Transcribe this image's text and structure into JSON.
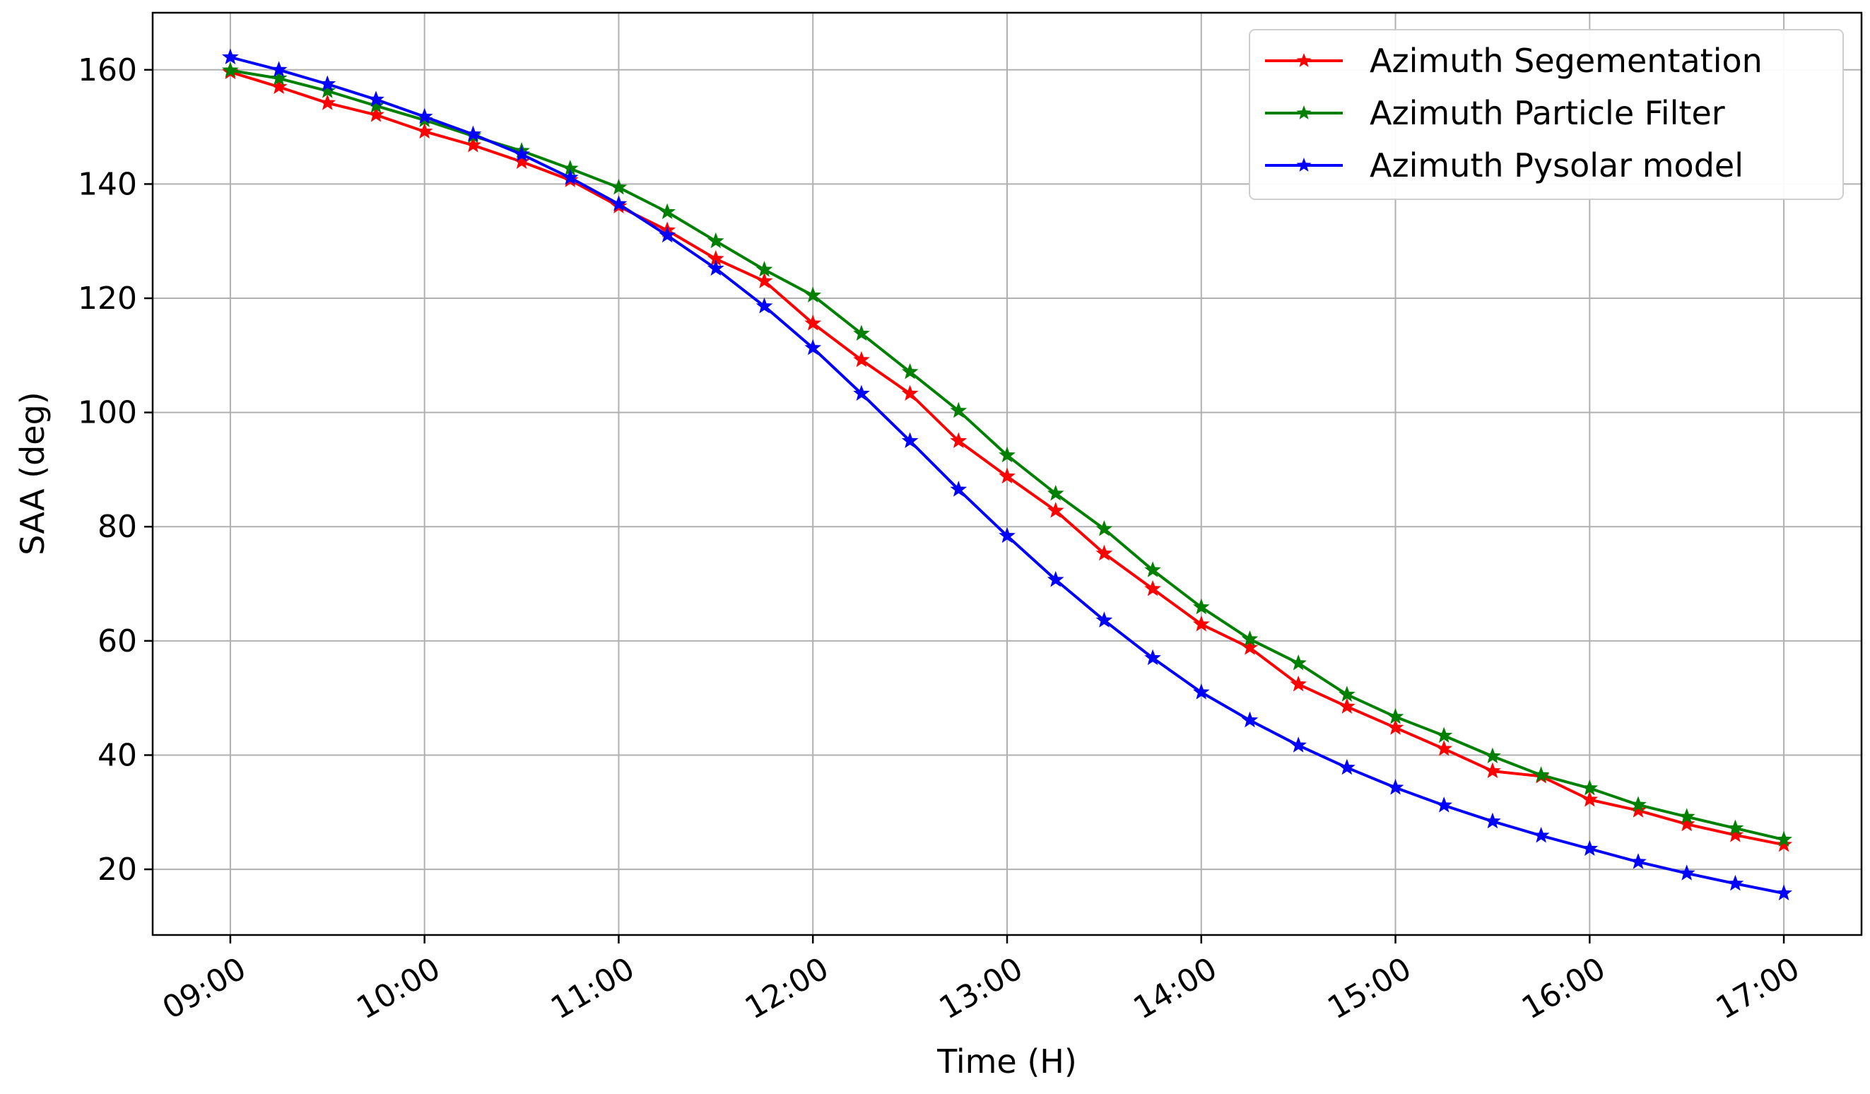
{
  "chart_data": {
    "type": "line",
    "title": "",
    "xlabel": "Time (H)",
    "ylabel": "SAA (deg)",
    "xlim": [
      8.6,
      17.4
    ],
    "ylim": [
      8.5,
      170
    ],
    "grid": true,
    "legend_position": "top-right",
    "x_ticks": [
      {
        "value": 9,
        "label": "09:00"
      },
      {
        "value": 10,
        "label": "10:00"
      },
      {
        "value": 11,
        "label": "11:00"
      },
      {
        "value": 12,
        "label": "12:00"
      },
      {
        "value": 13,
        "label": "13:00"
      },
      {
        "value": 14,
        "label": "14:00"
      },
      {
        "value": 15,
        "label": "15:00"
      },
      {
        "value": 16,
        "label": "16:00"
      },
      {
        "value": 17,
        "label": "17:00"
      }
    ],
    "y_ticks": [
      {
        "value": 20,
        "label": "20"
      },
      {
        "value": 40,
        "label": "40"
      },
      {
        "value": 60,
        "label": "60"
      },
      {
        "value": 80,
        "label": "80"
      },
      {
        "value": 100,
        "label": "100"
      },
      {
        "value": 120,
        "label": "120"
      },
      {
        "value": 140,
        "label": "140"
      },
      {
        "value": 160,
        "label": "160"
      }
    ],
    "x": [
      9.0,
      9.25,
      9.5,
      9.75,
      10.0,
      10.25,
      10.5,
      10.75,
      11.0,
      11.25,
      11.5,
      11.75,
      12.0,
      12.25,
      12.5,
      12.75,
      13.0,
      13.25,
      13.5,
      13.75,
      14.0,
      14.25,
      14.5,
      14.75,
      15.0,
      15.25,
      15.5,
      15.75,
      16.0,
      16.25,
      16.5,
      16.75,
      17.0
    ],
    "series": [
      {
        "name": "Azimuth Segementation",
        "color": "#ff0000",
        "values": [
          159.6,
          157.0,
          154.2,
          152.1,
          149.2,
          146.8,
          143.9,
          140.7,
          136.1,
          131.9,
          126.9,
          123.0,
          115.6,
          109.2,
          103.3,
          95.0,
          88.8,
          82.8,
          75.3,
          69.1,
          62.9,
          58.8,
          52.4,
          48.5,
          44.8,
          41.1,
          37.2,
          36.3,
          32.2,
          30.3,
          27.9,
          26.0,
          24.3
        ]
      },
      {
        "name": "Azimuth Particle Filter",
        "color": "#008000",
        "values": [
          159.9,
          158.5,
          156.3,
          153.7,
          151.2,
          148.4,
          145.8,
          142.7,
          139.4,
          135.1,
          130.0,
          125.0,
          120.5,
          113.8,
          107.1,
          100.3,
          92.5,
          85.8,
          79.6,
          72.4,
          65.9,
          60.3,
          56.1,
          50.6,
          46.7,
          43.4,
          39.8,
          36.5,
          34.2,
          31.3,
          29.2,
          27.2,
          25.2
        ]
      },
      {
        "name": "Azimuth Pysolar model",
        "color": "#0000ff",
        "values": [
          162.2,
          160.0,
          157.5,
          154.8,
          151.8,
          148.7,
          145.2,
          141.1,
          136.5,
          131.0,
          125.2,
          118.6,
          111.3,
          103.3,
          95.0,
          86.5,
          78.4,
          70.7,
          63.6,
          57.0,
          51.0,
          46.1,
          41.7,
          37.8,
          34.3,
          31.2,
          28.4,
          25.9,
          23.6,
          21.3,
          19.3,
          17.5,
          15.8
        ]
      }
    ]
  }
}
